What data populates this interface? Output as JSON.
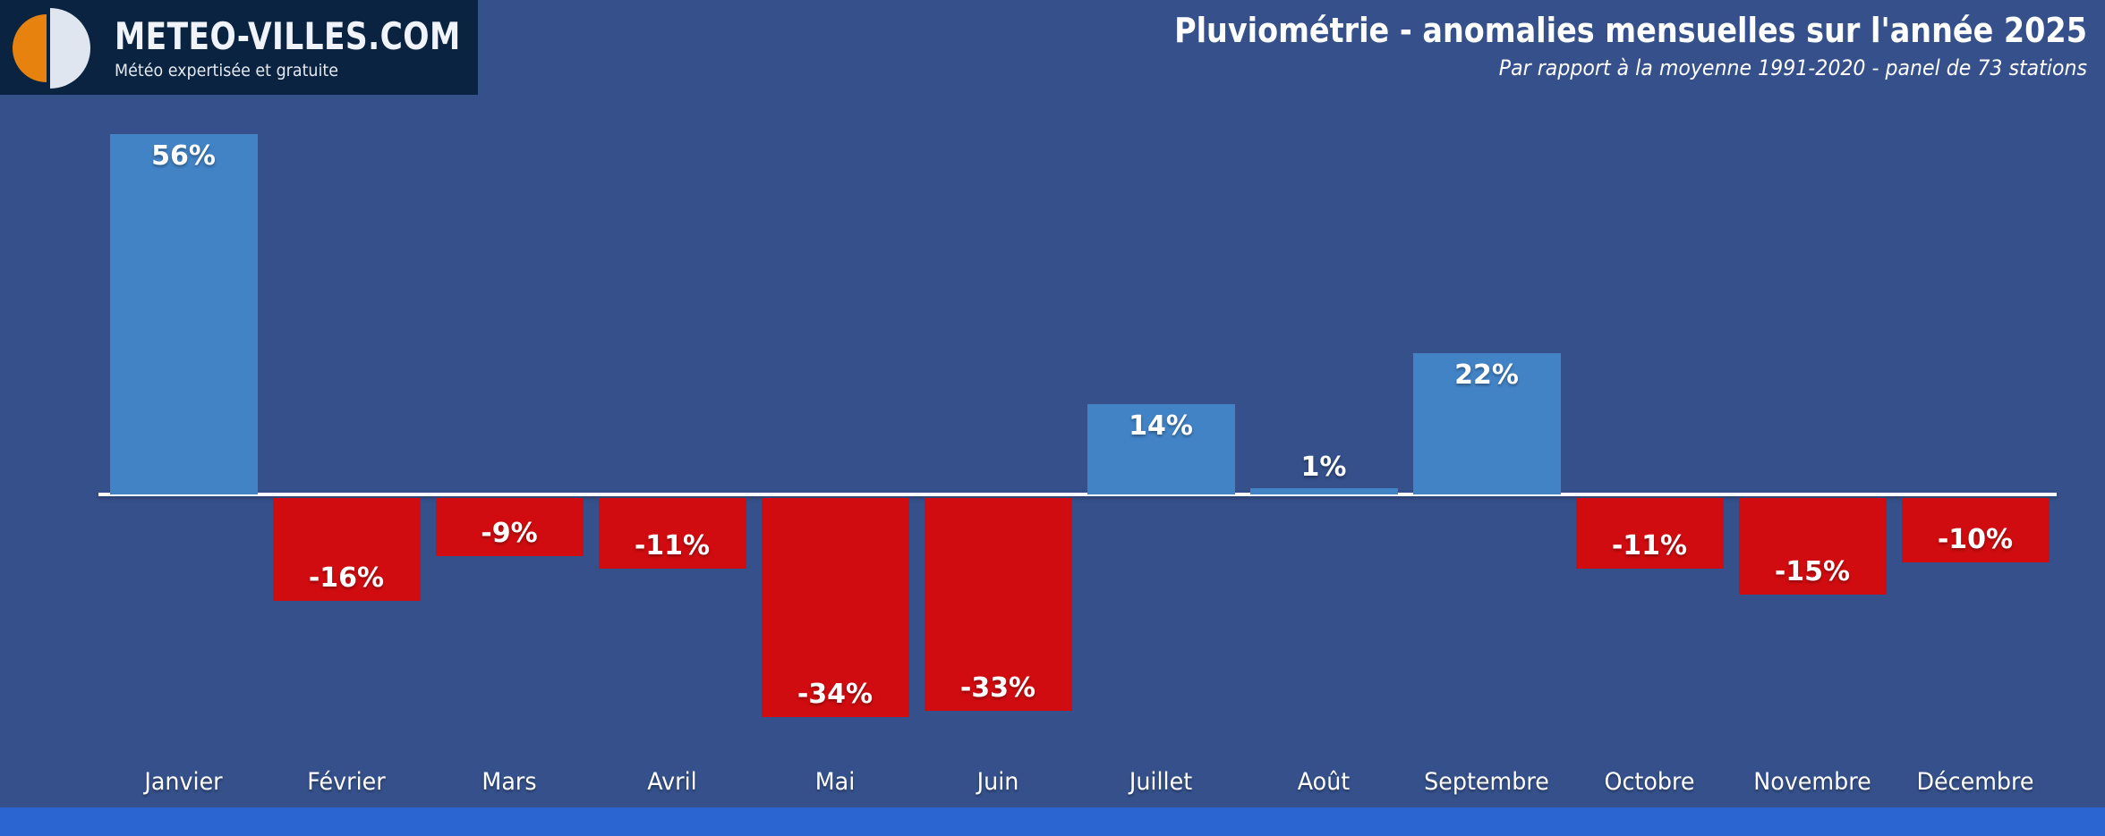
{
  "logo": {
    "brand": "METEO-VILLES.COM",
    "tagline": "Météo expertisée et gratuite",
    "box_color": "#0a2341",
    "icon_orange": "#e8820e",
    "icon_light": "#dfe6ef"
  },
  "header": {
    "title": "Pluviométrie - anomalies mensuelles sur l'année 2025",
    "subtitle": "Par rapport à la moyenne 1991-2020 - panel de 73 stations"
  },
  "chart_data": {
    "type": "bar",
    "title": "Pluviométrie - anomalies mensuelles sur l'année 2025",
    "subtitle": "Par rapport à la moyenne 1991-2020 - panel de 73 stations",
    "categories": [
      "Janvier",
      "Février",
      "Mars",
      "Avril",
      "Mai",
      "Juin",
      "Juillet",
      "Août",
      "Septembre",
      "Octobre",
      "Novembre",
      "Décembre"
    ],
    "values": [
      56,
      -16,
      -9,
      -11,
      -34,
      -33,
      14,
      1,
      22,
      -11,
      -15,
      -10
    ],
    "bar_labels": [
      "56%",
      "-16%",
      "-9%",
      "-11%",
      "-34%",
      "-33%",
      "14%",
      "1%",
      "22%",
      "-11%",
      "-15%",
      "-10%"
    ],
    "unit": "%",
    "xlabel": "",
    "ylabel": "",
    "ylim": [
      -40,
      60
    ],
    "baseline": 0,
    "grid": false,
    "legend": false,
    "positive_color": "#4283c6",
    "negative_color": "#d10c10",
    "baseline_color": "#ffffff",
    "background_color": "#35508a",
    "footer_strip_color": "#2b65d2"
  }
}
